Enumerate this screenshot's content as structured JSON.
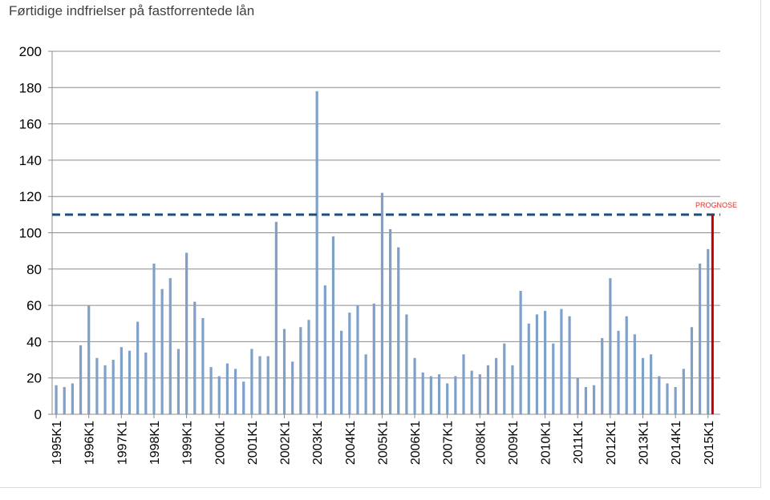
{
  "chart_data": {
    "type": "bar",
    "title": "Førtidige indfrielser på fastforrentede lån",
    "xlabel": "",
    "ylabel": "",
    "ylim": [
      0,
      200
    ],
    "yticks": [
      "0",
      "20",
      "40",
      "60",
      "80",
      "100",
      "120",
      "140",
      "160",
      "180",
      "200"
    ],
    "grid": true,
    "year_labels": [
      "1995K1",
      "1996K1",
      "1997K1",
      "1998K1",
      "1999K1",
      "2000K1",
      "2001K1",
      "2002K1",
      "2003K1",
      "2004K1",
      "2005K1",
      "2006K1",
      "2007K1",
      "2008K1",
      "2009K1",
      "2010K1",
      "2011K1",
      "2012K1",
      "2013K1",
      "2014K1",
      "2015K1"
    ],
    "bar_color": "#7ea0c9",
    "values": [
      16,
      15,
      17,
      38,
      60,
      31,
      27,
      30,
      37,
      35,
      51,
      34,
      83,
      69,
      75,
      36,
      89,
      62,
      53,
      26,
      21,
      28,
      25,
      18,
      36,
      32,
      32,
      106,
      47,
      29,
      48,
      52,
      178,
      71,
      98,
      46,
      56,
      60,
      33,
      61,
      122,
      102,
      92,
      55,
      31,
      23,
      21,
      22,
      17,
      21,
      33,
      24,
      22,
      27,
      31,
      39,
      27,
      68,
      50,
      55,
      57,
      39,
      58,
      54,
      20,
      15,
      16,
      42,
      75,
      46,
      54,
      44,
      31,
      33,
      21,
      17,
      15,
      25,
      48,
      83,
      91
    ],
    "reference_line": {
      "value": 110,
      "style": "dashed",
      "color": "#1f4e79"
    },
    "forecast_marker": {
      "label": "PROGNOSE",
      "value": 110,
      "color": "#c00000"
    }
  }
}
